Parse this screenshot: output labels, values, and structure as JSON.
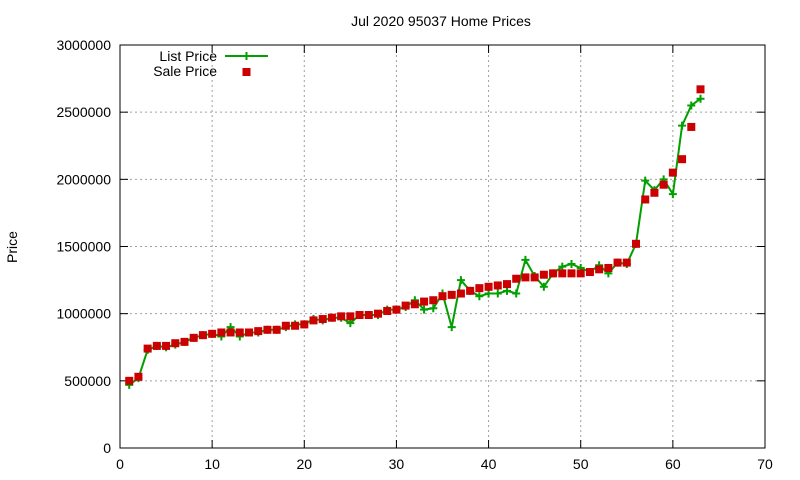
{
  "chart_data": {
    "type": "line",
    "title": "Jul 2020 95037 Home Prices",
    "xlabel": "",
    "ylabel": "Price",
    "xlim": [
      0,
      70
    ],
    "ylim": [
      0,
      3000000
    ],
    "xticks": [
      0,
      10,
      20,
      30,
      40,
      50,
      60,
      70
    ],
    "yticks": [
      0,
      500000,
      1000000,
      1500000,
      2000000,
      2500000,
      3000000
    ],
    "grid": true,
    "legend_position": "top-left",
    "colors": {
      "list": "#00a000",
      "sale": "#cc0000"
    },
    "series": [
      {
        "name": "List Price",
        "style": "line-plus",
        "x": [
          1,
          2,
          3,
          4,
          5,
          6,
          7,
          8,
          9,
          10,
          11,
          12,
          13,
          14,
          15,
          16,
          17,
          18,
          19,
          20,
          21,
          22,
          23,
          24,
          25,
          26,
          27,
          28,
          29,
          30,
          31,
          32,
          33,
          34,
          35,
          36,
          37,
          38,
          39,
          40,
          41,
          42,
          43,
          44,
          45,
          46,
          47,
          48,
          49,
          50,
          51,
          52,
          53,
          54,
          55,
          56,
          57,
          58,
          59,
          60,
          61,
          62,
          63
        ],
        "values": [
          470000,
          520000,
          730000,
          760000,
          750000,
          770000,
          790000,
          820000,
          840000,
          850000,
          830000,
          900000,
          830000,
          860000,
          860000,
          880000,
          880000,
          900000,
          920000,
          920000,
          960000,
          950000,
          970000,
          970000,
          930000,
          990000,
          990000,
          990000,
          1030000,
          1030000,
          1050000,
          1100000,
          1030000,
          1040000,
          1150000,
          900000,
          1250000,
          1170000,
          1130000,
          1150000,
          1150000,
          1170000,
          1150000,
          1400000,
          1280000,
          1200000,
          1300000,
          1350000,
          1370000,
          1340000,
          1310000,
          1360000,
          1300000,
          1380000,
          1370000,
          1520000,
          1990000,
          1920000,
          2000000,
          1890000,
          2400000,
          2550000,
          2600000
        ]
      },
      {
        "name": "Sale Price",
        "style": "square-points",
        "x": [
          1,
          2,
          3,
          4,
          5,
          6,
          7,
          8,
          9,
          10,
          11,
          12,
          13,
          14,
          15,
          16,
          17,
          18,
          19,
          20,
          21,
          22,
          23,
          24,
          25,
          26,
          27,
          28,
          29,
          30,
          31,
          32,
          33,
          34,
          35,
          36,
          37,
          38,
          39,
          40,
          41,
          42,
          43,
          44,
          45,
          46,
          47,
          48,
          49,
          50,
          51,
          52,
          53,
          54,
          55,
          56,
          57,
          58,
          59,
          60,
          61,
          62,
          63
        ],
        "values": [
          500000,
          530000,
          740000,
          760000,
          760000,
          780000,
          790000,
          820000,
          840000,
          850000,
          860000,
          860000,
          860000,
          860000,
          870000,
          880000,
          880000,
          910000,
          910000,
          920000,
          950000,
          960000,
          970000,
          980000,
          980000,
          990000,
          990000,
          1000000,
          1020000,
          1030000,
          1060000,
          1070000,
          1090000,
          1100000,
          1130000,
          1140000,
          1150000,
          1170000,
          1190000,
          1200000,
          1210000,
          1220000,
          1260000,
          1270000,
          1270000,
          1290000,
          1300000,
          1300000,
          1300000,
          1300000,
          1310000,
          1330000,
          1340000,
          1380000,
          1380000,
          1520000,
          1850000,
          1900000,
          1960000,
          2050000,
          2150000,
          2390000,
          2670000
        ]
      }
    ]
  }
}
